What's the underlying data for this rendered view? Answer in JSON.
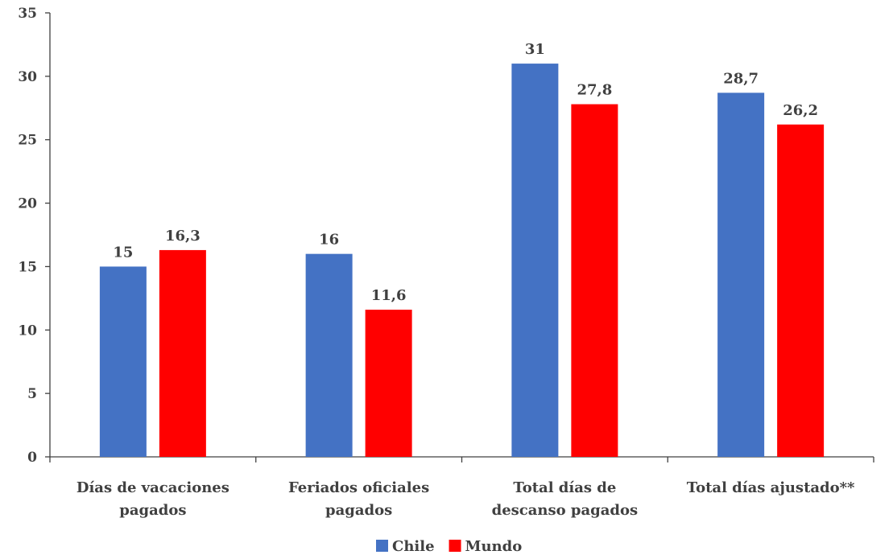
{
  "chart_data": {
    "type": "bar",
    "categories": [
      [
        "Días de vacaciones",
        "pagados"
      ],
      [
        "Feriados oficiales",
        "pagados"
      ],
      [
        "Total días de",
        "descanso pagados"
      ],
      [
        "Total días ajustado**"
      ]
    ],
    "series": [
      {
        "name": "Chile",
        "color": "#4472C4",
        "values": [
          15,
          16,
          31,
          28.7
        ],
        "labels": [
          "15",
          "16",
          "31",
          "28,7"
        ]
      },
      {
        "name": "Mundo",
        "color": "#FF0000",
        "values": [
          16.3,
          11.6,
          27.8,
          26.2
        ],
        "labels": [
          "16,3",
          "11,6",
          "27,8",
          "26,2"
        ]
      }
    ],
    "ylim": [
      0,
      35
    ],
    "yticks": [
      0,
      5,
      10,
      15,
      20,
      25,
      30,
      35
    ],
    "grid": false,
    "legend": "bottom-center"
  }
}
